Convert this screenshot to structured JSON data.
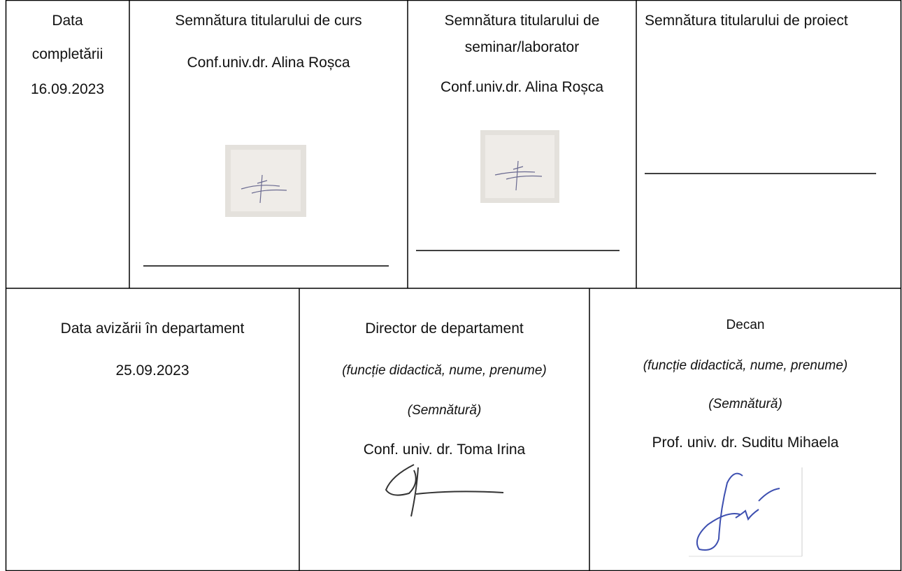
{
  "table": {
    "rows": [
      [
        [
          "Data",
          "completării",
          "16.09.2023"
        ],
        [
          "Semnătura titularului de curs",
          "Conf.univ.dr. Alina Roșca"
        ],
        [
          "Semnătura titularului de",
          "seminar/laborator",
          "Conf.univ.dr. Alina Roșca"
        ],
        [
          "Semnătura titularului de proiect"
        ]
      ],
      [
        [
          "Data avizării în departament",
          "25.09.2023"
        ],
        [
          "Director de departament",
          "(funcție didactică, nume, prenume)",
          "(Semnătură)",
          "Conf. univ. dr. Toma Irina"
        ],
        [
          "Decan",
          "(funcție didactică, nume, prenume)",
          "(Semnătură)",
          "Prof. univ. dr. Suditu Mihaela"
        ]
      ]
    ]
  }
}
